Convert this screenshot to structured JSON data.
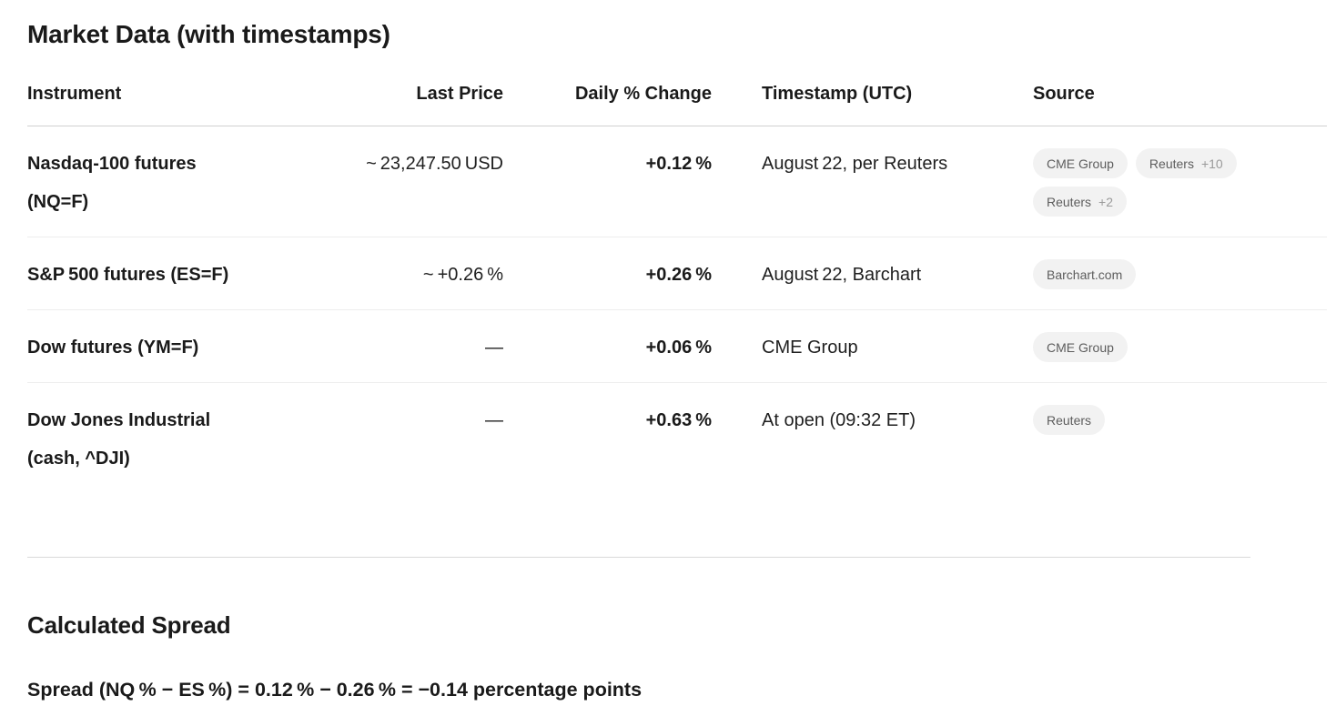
{
  "page": {
    "title": "Market Data (with timestamps)"
  },
  "table": {
    "columns": [
      {
        "label": "Instrument"
      },
      {
        "label": "Last Price"
      },
      {
        "label": "Daily % Change"
      },
      {
        "label": "Timestamp (UTC)"
      },
      {
        "label": "Source"
      }
    ],
    "rows": [
      {
        "instrument_lines": [
          "Nasdaq-100 futures",
          "(NQ=F)"
        ],
        "last_price": "~ 23,247.50 USD",
        "daily_change": "+0.12 %",
        "timestamp": "August 22, per Reuters",
        "sources": [
          {
            "label": "CME Group",
            "count": ""
          },
          {
            "label": "Reuters",
            "count": "+10"
          },
          {
            "label": "Reuters",
            "count": "+2"
          }
        ]
      },
      {
        "instrument_lines": [
          "S&P 500 futures (ES=F)",
          ""
        ],
        "last_price": "~ +0.26 %",
        "daily_change": "+0.26 %",
        "timestamp": "August 22, Barchart",
        "sources": [
          {
            "label": "Barchart.com",
            "count": ""
          }
        ]
      },
      {
        "instrument_lines": [
          "Dow futures (YM=F)",
          ""
        ],
        "last_price": "—",
        "daily_change": "+0.06 %",
        "timestamp": "CME Group",
        "sources": [
          {
            "label": "CME Group",
            "count": ""
          }
        ]
      },
      {
        "instrument_lines": [
          "Dow Jones Industrial",
          "(cash, ^DJI)"
        ],
        "last_price": "—",
        "daily_change": "+0.63 %",
        "timestamp": "At open (09:32 ET)",
        "sources": [
          {
            "label": "Reuters",
            "count": ""
          }
        ]
      }
    ]
  },
  "spread_section": {
    "title": "Calculated Spread",
    "formula": "Spread (NQ % − ES %) = 0.12 % − 0.26 % = −0.14 percentage points"
  },
  "colors": {
    "text": "#1a1a1a",
    "badge_bg": "#f2f2f2",
    "badge_text": "#5d5d5d",
    "badge_count": "#9a9a9a",
    "divider_header": "#d0d0d0",
    "divider_row": "#eeeeee",
    "divider_section": "#d9d9d9"
  }
}
